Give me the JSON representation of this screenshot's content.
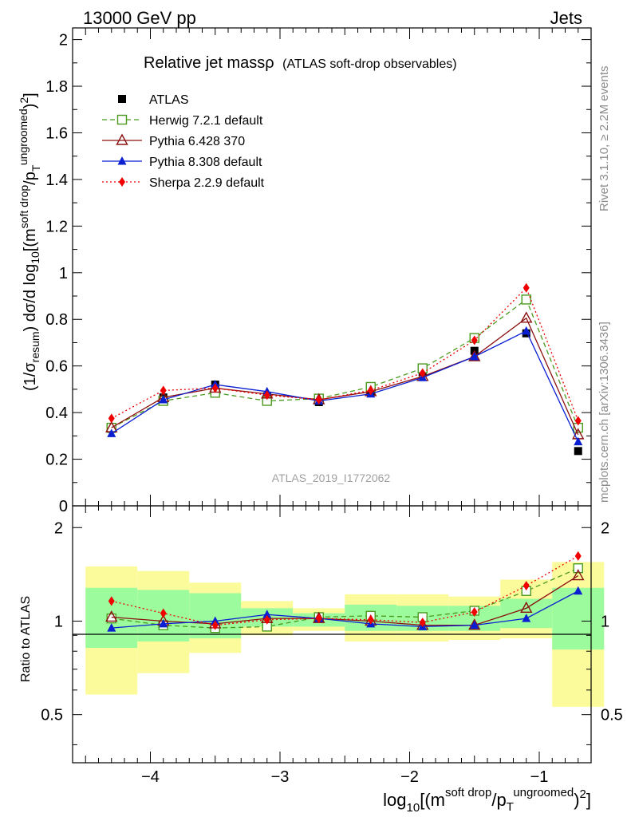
{
  "header": {
    "energy": "13000 GeV pp",
    "category": "Jets"
  },
  "side": {
    "rivet": "Rivet 3.1.10, ≥ 2.2M events",
    "mcplots": "mcplots.cern.ch [arXiv:1306.3436]"
  },
  "main": {
    "title_main": "Relative jet massρ",
    "title_sub": "(ATLAS soft-drop observables)",
    "ylabel": "(1/σresum) dσ/d log10[(msoft drop/pTungroomed)2]",
    "watermark": "ATLAS_2019_I1772062"
  },
  "ratio": {
    "ylabel": "Ratio to ATLAS"
  },
  "xlabel": "log10[(msoft drop/pTungroomed)2]",
  "colors": {
    "atlas": "#000000",
    "herwig": "#4a9a1e",
    "pythia6": "#8b1010",
    "pythia8": "#0a1ed2",
    "sherpa": "#f00000",
    "band_inner": "#9cfb9c",
    "band_outer": "#fbfb9c",
    "side_text": "#8c8c8c"
  },
  "chart_data": [
    {
      "type": "line",
      "title": "Relative jet massρ (ATLAS soft-drop observables)",
      "xlabel": "log10[(msoft drop/pTungroomed)2]",
      "ylabel": "(1/σresum) dσ/d log10[(msoft drop/pTungroomed)2]",
      "xlim": [
        -4.6,
        -0.6
      ],
      "ylim": [
        0,
        2.05
      ],
      "xticks": [
        "−4",
        "−3",
        "−2",
        "−1"
      ],
      "yticks": [
        "0",
        "0.2",
        "0.4",
        "0.6",
        "0.8",
        "1",
        "1.2",
        "1.4",
        "1.6",
        "1.8",
        "2"
      ],
      "x": [
        -4.3,
        -3.9,
        -3.5,
        -3.1,
        -2.7,
        -2.3,
        -1.9,
        -1.5,
        -1.1,
        -0.7
      ],
      "legend_position": "top-left",
      "series": [
        {
          "name": "ATLAS",
          "marker": "square-filled",
          "color": "#000000",
          "values": [
            0.33,
            0.465,
            0.52,
            0.47,
            0.445,
            0.49,
            0.575,
            0.665,
            0.74,
            0.235
          ]
        },
        {
          "name": "Herwig 7.2.1 default",
          "marker": "square-open",
          "line": "dashed",
          "color": "#4a9a1e",
          "values": [
            0.335,
            0.45,
            0.485,
            0.45,
            0.46,
            0.51,
            0.59,
            0.72,
            0.885,
            0.335
          ]
        },
        {
          "name": "Pythia 6.428 370",
          "marker": "triangle-open",
          "line": "solid",
          "color": "#8b1010",
          "values": [
            0.335,
            0.465,
            0.505,
            0.48,
            0.455,
            0.49,
            0.555,
            0.64,
            0.805,
            0.305
          ]
        },
        {
          "name": "Pythia 8.308 default",
          "marker": "triangle-filled",
          "line": "solid",
          "color": "#0a1ed2",
          "values": [
            0.31,
            0.455,
            0.52,
            0.49,
            0.45,
            0.48,
            0.55,
            0.64,
            0.75,
            0.275
          ]
        },
        {
          "name": "Sherpa 2.2.9 default",
          "marker": "diamond-filled",
          "line": "dotted",
          "color": "#f00000",
          "values": [
            0.375,
            0.495,
            0.505,
            0.475,
            0.455,
            0.495,
            0.57,
            0.71,
            0.935,
            0.365
          ]
        }
      ]
    },
    {
      "type": "line",
      "ylabel": "Ratio to ATLAS",
      "xlabel": "log10[(msoft drop/pTungroomed)2]",
      "xlim": [
        -4.6,
        -0.6
      ],
      "ylim": [
        0.35,
        2.35
      ],
      "yscale": "log",
      "yticks": [
        "0.5",
        "1",
        "2"
      ],
      "bin_edges": [
        -4.5,
        -4.1,
        -3.7,
        -3.3,
        -2.9,
        -2.5,
        -2.1,
        -1.7,
        -1.3,
        -0.9,
        -0.5
      ],
      "band_inner": [
        [
          0.82,
          1.28
        ],
        [
          0.86,
          1.26
        ],
        [
          0.88,
          1.23
        ],
        [
          0.96,
          1.1
        ],
        [
          0.96,
          1.06
        ],
        [
          0.93,
          1.13
        ],
        [
          0.93,
          1.12
        ],
        [
          0.93,
          1.12
        ],
        [
          0.95,
          1.18
        ],
        [
          0.81,
          1.28
        ]
      ],
      "band_outer": [
        [
          0.58,
          1.5
        ],
        [
          0.68,
          1.45
        ],
        [
          0.79,
          1.33
        ],
        [
          0.9,
          1.16
        ],
        [
          0.93,
          1.1
        ],
        [
          0.86,
          1.22
        ],
        [
          0.86,
          1.22
        ],
        [
          0.87,
          1.2
        ],
        [
          0.88,
          1.36
        ],
        [
          0.53,
          1.55
        ]
      ],
      "x": [
        -4.3,
        -3.9,
        -3.5,
        -3.1,
        -2.7,
        -2.3,
        -1.9,
        -1.5,
        -1.1,
        -0.7
      ],
      "series": [
        {
          "name": "Herwig 7.2.1 default",
          "values": [
            1.02,
            0.97,
            0.95,
            0.96,
            1.03,
            1.04,
            1.03,
            1.08,
            1.25,
            1.48
          ]
        },
        {
          "name": "Pythia 6.428 370",
          "values": [
            1.03,
            1.0,
            0.98,
            1.02,
            1.02,
            1.0,
            0.97,
            0.97,
            1.1,
            1.4
          ]
        },
        {
          "name": "Pythia 8.308 default",
          "values": [
            0.95,
            0.98,
            1.0,
            1.05,
            1.02,
            0.98,
            0.96,
            0.97,
            1.02,
            1.25
          ]
        },
        {
          "name": "Sherpa 2.2.9 default",
          "values": [
            1.16,
            1.06,
            0.97,
            1.01,
            1.02,
            1.01,
            0.99,
            1.07,
            1.3,
            1.62
          ]
        }
      ]
    }
  ]
}
